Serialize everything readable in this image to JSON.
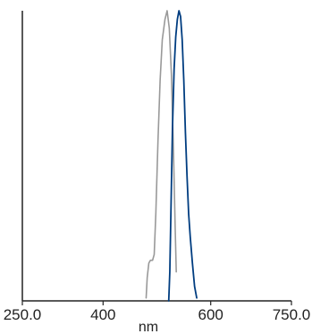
{
  "chart_data": {
    "type": "line",
    "title": "",
    "xlabel": "nm",
    "ylabel": "",
    "xlim": [
      250,
      750
    ],
    "ylim": [
      0,
      1
    ],
    "xticks": [
      250,
      400,
      600,
      750
    ],
    "xtick_labels": [
      "250.0",
      "400",
      "600",
      "750.0"
    ],
    "grid": false,
    "legend": "none",
    "series": [
      {
        "color": "#999999",
        "points": [
          [
            480,
            0.01
          ],
          [
            482,
            0.08
          ],
          [
            485,
            0.13
          ],
          [
            488,
            0.14
          ],
          [
            492,
            0.14
          ],
          [
            495,
            0.16
          ],
          [
            498,
            0.3
          ],
          [
            502,
            0.55
          ],
          [
            506,
            0.76
          ],
          [
            510,
            0.9
          ],
          [
            515,
            0.97
          ],
          [
            519,
            1.0
          ],
          [
            523,
            0.94
          ],
          [
            527,
            0.78
          ],
          [
            531,
            0.5
          ],
          [
            534,
            0.25
          ],
          [
            536,
            0.1
          ]
        ]
      },
      {
        "color": "#003d80",
        "points": [
          [
            522,
            0.0
          ],
          [
            524,
            0.1
          ],
          [
            526,
            0.3
          ],
          [
            529,
            0.6
          ],
          [
            532,
            0.8
          ],
          [
            535,
            0.91
          ],
          [
            538,
            0.97
          ],
          [
            541,
            1.0
          ],
          [
            544,
            0.98
          ],
          [
            547,
            0.9
          ],
          [
            550,
            0.76
          ],
          [
            553,
            0.58
          ],
          [
            556,
            0.43
          ],
          [
            559,
            0.3
          ],
          [
            562,
            0.22
          ],
          [
            566,
            0.13
          ],
          [
            570,
            0.05
          ],
          [
            574,
            0.01
          ]
        ]
      }
    ]
  }
}
